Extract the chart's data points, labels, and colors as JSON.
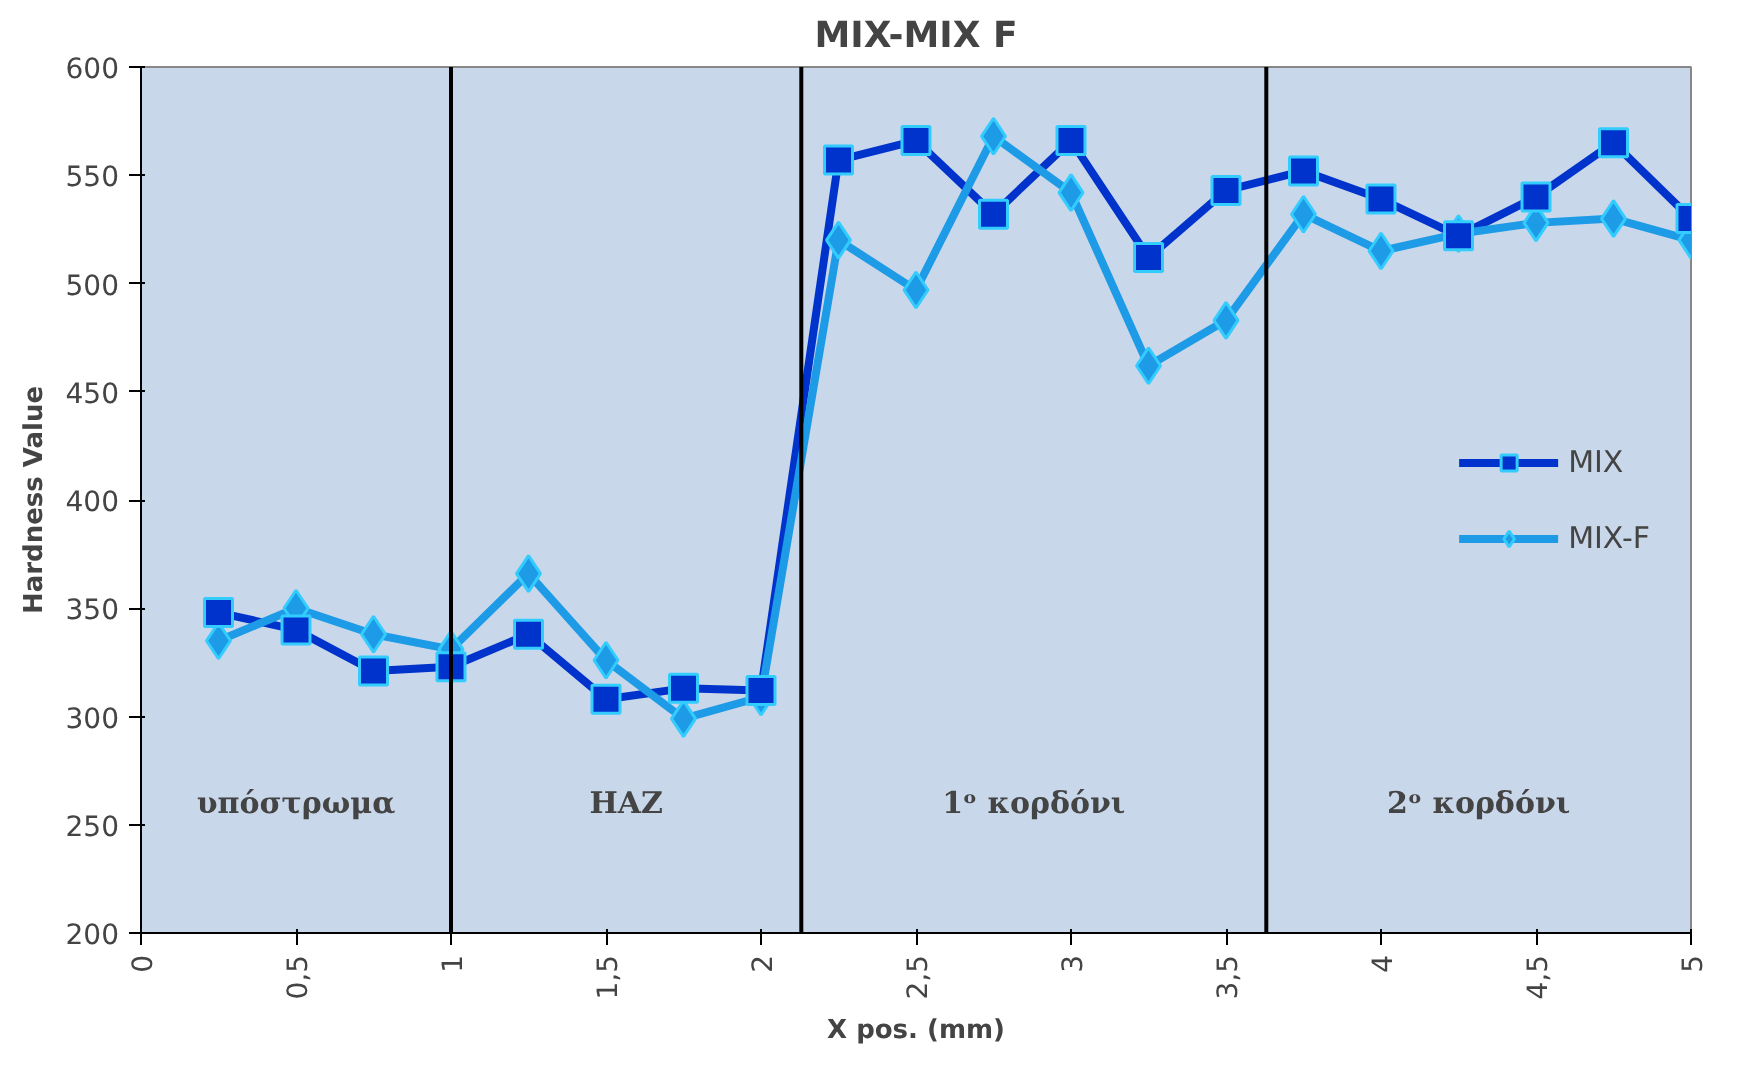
{
  "chart_data": {
    "type": "line",
    "title": "MIX-MIX F",
    "xlabel": "X pos. (mm)",
    "ylabel": "Hardness Value",
    "x": [
      0.25,
      0.5,
      0.75,
      1,
      1.25,
      1.5,
      1.75,
      2,
      2.25,
      2.5,
      2.75,
      3,
      3.25,
      3.5,
      3.75,
      4,
      4.25,
      4.5,
      4.75,
      5
    ],
    "series": [
      {
        "name": "MIX",
        "color": "#0033cc",
        "marker": "square",
        "values": [
          348,
          340,
          321,
          323,
          338,
          308,
          313,
          312,
          557,
          566,
          532,
          566,
          512,
          543,
          552,
          539,
          522,
          540,
          565,
          530
        ]
      },
      {
        "name": "MIX-F",
        "color": "#1e9be6",
        "marker": "diamond",
        "values": [
          335,
          350,
          338,
          331,
          366,
          326,
          299,
          309,
          520,
          497,
          568,
          542,
          462,
          483,
          532,
          515,
          523,
          528,
          530,
          520
        ]
      }
    ],
    "xlim": [
      0,
      5
    ],
    "ylim": [
      200,
      600
    ],
    "xticks": [
      0,
      {
        "value": 0.5,
        "label": "0,5"
      },
      1,
      {
        "value": 1.5,
        "label": "1,5"
      },
      2,
      {
        "value": 2.5,
        "label": "2,5"
      },
      3,
      {
        "value": 3.5,
        "label": "3,5"
      },
      4,
      {
        "value": 4.5,
        "label": "4,5"
      },
      5
    ],
    "yticks": [
      200,
      250,
      300,
      350,
      400,
      450,
      500,
      550,
      600
    ],
    "ref_lines": [
      {
        "axis": "x",
        "value": 1,
        "color": "#000000"
      },
      {
        "axis": "x",
        "value": 2.13,
        "color": "#000000"
      },
      {
        "axis": "x",
        "value": 3.63,
        "color": "#000000"
      }
    ],
    "annotations": [
      "υπόστρωμα",
      "HAZ",
      "1ᵒ κορδόνι",
      "2ᵒ κορδόνι"
    ],
    "grid": false,
    "legend": "right",
    "line_style": "solid"
  }
}
